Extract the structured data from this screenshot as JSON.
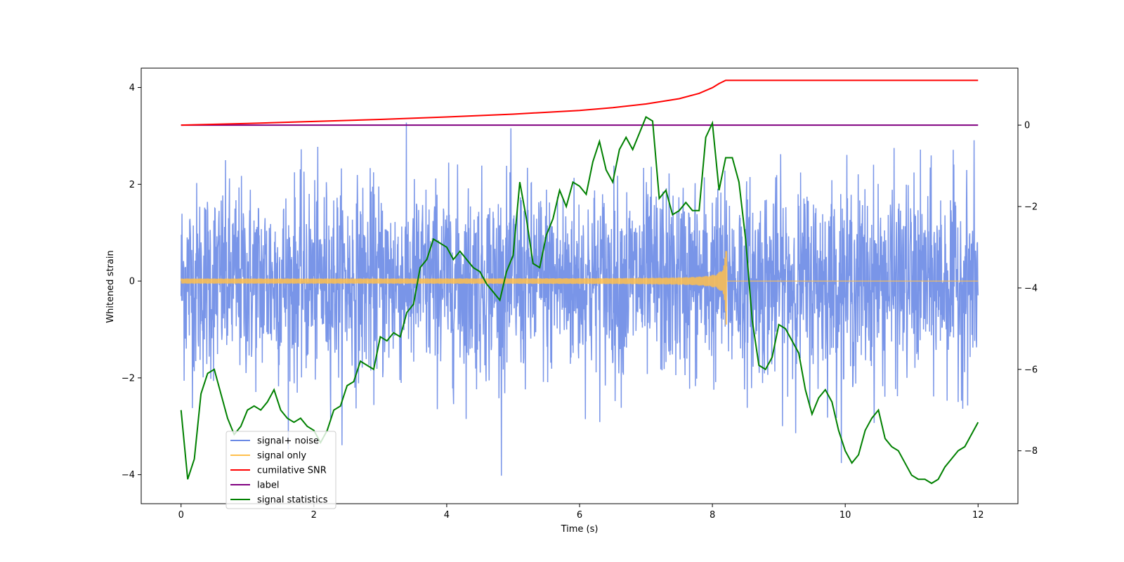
{
  "chart_data": {
    "type": "line",
    "xlabel": "Time (s)",
    "ylabel": "Whitened strain",
    "xlim": [
      -0.6,
      12.6
    ],
    "ylim": [
      -4.6,
      4.4
    ],
    "y2lim": [
      -9.3,
      1.4
    ],
    "xticks": [
      0,
      2,
      4,
      6,
      8,
      10,
      12
    ],
    "yticks": [
      -4,
      -2,
      0,
      2,
      4
    ],
    "y2ticks": [
      -8,
      -6,
      -4,
      -2,
      0
    ],
    "grid": false,
    "legend_position": "lower-left",
    "colors": {
      "noise": "#6a89e5",
      "signal": "#ffc04d",
      "snr": "#ff0000",
      "label": "#800080",
      "stats": "#008000"
    },
    "series": [
      {
        "name": "signal+ noise",
        "axis": "left",
        "color": "#6a89e5",
        "description_values": {
          "t_start": 0,
          "t_end": 12,
          "amplitude_sd": 1.0,
          "peak_max": 4.1,
          "peak_min": -4.15
        }
      },
      {
        "name": "signal only",
        "axis": "left",
        "color": "#ffc04d",
        "values": {
          "chirp_start": 0,
          "chirp_merger": 8.2,
          "end": 12,
          "peak_upper": 0.62,
          "peak_lower": -0.9
        }
      },
      {
        "name": "cumilative SNR",
        "axis": "right",
        "x": [
          0,
          1,
          2,
          3,
          4,
          5,
          6,
          6.5,
          7,
          7.5,
          7.8,
          8.0,
          8.1,
          8.2,
          12
        ],
        "y": [
          0,
          0.04,
          0.09,
          0.14,
          0.2,
          0.27,
          0.36,
          0.43,
          0.52,
          0.65,
          0.78,
          0.92,
          1.02,
          1.1,
          1.1
        ]
      },
      {
        "name": "label",
        "axis": "right",
        "x": [
          0,
          12
        ],
        "y": [
          0,
          0
        ]
      },
      {
        "name": "signal statistics",
        "axis": "right",
        "x": [
          0,
          0.1,
          0.2,
          0.3,
          0.4,
          0.5,
          0.6,
          0.7,
          0.8,
          0.9,
          1.0,
          1.1,
          1.2,
          1.3,
          1.4,
          1.5,
          1.6,
          1.7,
          1.8,
          1.9,
          2.0,
          2.1,
          2.2,
          2.3,
          2.4,
          2.5,
          2.6,
          2.7,
          2.8,
          2.9,
          3.0,
          3.1,
          3.2,
          3.3,
          3.4,
          3.5,
          3.6,
          3.7,
          3.8,
          3.9,
          4.0,
          4.1,
          4.2,
          4.3,
          4.4,
          4.5,
          4.6,
          4.7,
          4.8,
          4.9,
          5.0,
          5.1,
          5.2,
          5.3,
          5.4,
          5.5,
          5.6,
          5.7,
          5.8,
          5.9,
          6.0,
          6.1,
          6.2,
          6.3,
          6.4,
          6.5,
          6.6,
          6.7,
          6.8,
          6.9,
          7.0,
          7.1,
          7.2,
          7.3,
          7.4,
          7.5,
          7.6,
          7.7,
          7.8,
          7.9,
          8.0,
          8.1,
          8.2,
          8.3,
          8.4,
          8.5,
          8.6,
          8.7,
          8.8,
          8.9,
          9.0,
          9.1,
          9.2,
          9.3,
          9.4,
          9.5,
          9.6,
          9.7,
          9.8,
          9.9,
          10.0,
          10.1,
          10.2,
          10.3,
          10.4,
          10.5,
          10.6,
          10.7,
          10.8,
          10.9,
          11.0,
          11.1,
          11.2,
          11.3,
          11.4,
          11.5,
          11.6,
          11.7,
          11.8,
          11.9,
          12.0
        ],
        "y": [
          -7.0,
          -8.7,
          -8.2,
          -6.6,
          -6.1,
          -6.0,
          -6.6,
          -7.2,
          -7.6,
          -7.4,
          -7.0,
          -6.9,
          -7.0,
          -6.8,
          -6.5,
          -7.0,
          -7.2,
          -7.3,
          -7.2,
          -7.4,
          -7.5,
          -7.8,
          -7.5,
          -7.0,
          -6.9,
          -6.4,
          -6.3,
          -5.8,
          -5.9,
          -6.0,
          -5.2,
          -5.3,
          -5.1,
          -5.2,
          -4.6,
          -4.4,
          -3.5,
          -3.3,
          -2.8,
          -2.9,
          -3.0,
          -3.3,
          -3.1,
          -3.3,
          -3.5,
          -3.6,
          -3.9,
          -4.1,
          -4.3,
          -3.6,
          -3.2,
          -1.4,
          -2.3,
          -3.4,
          -3.5,
          -2.7,
          -2.3,
          -1.6,
          -2.0,
          -1.4,
          -1.5,
          -1.7,
          -0.9,
          -0.4,
          -1.1,
          -1.4,
          -0.6,
          -0.3,
          -0.6,
          -0.2,
          0.2,
          0.1,
          -1.8,
          -1.6,
          -2.2,
          -2.1,
          -1.9,
          -2.1,
          -2.1,
          -0.3,
          0.05,
          -1.6,
          -0.8,
          -0.8,
          -1.4,
          -2.8,
          -4.8,
          -5.9,
          -6.0,
          -5.7,
          -4.9,
          -5.0,
          -5.3,
          -5.6,
          -6.5,
          -7.1,
          -6.7,
          -6.5,
          -6.8,
          -7.5,
          -8.0,
          -8.3,
          -8.1,
          -7.5,
          -7.2,
          -7.0,
          -7.7,
          -7.9,
          -8.0,
          -8.3,
          -8.6,
          -8.7,
          -8.7,
          -8.8,
          -8.7,
          -8.4,
          -8.2,
          -8.0,
          -7.9,
          -7.6,
          -7.3
        ]
      }
    ]
  }
}
